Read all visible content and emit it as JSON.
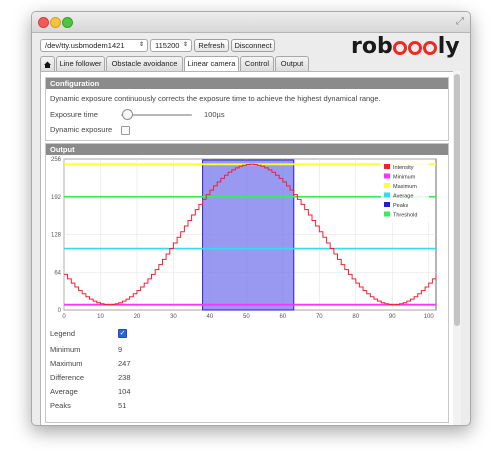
{
  "toolbar": {
    "port": "/dev/tty.usbmodem1421",
    "baud": "115200",
    "refresh_label": "Refresh",
    "disconnect_label": "Disconnect",
    "logo_text_pre": "rob",
    "logo_text_post": "ly"
  },
  "tabs": [
    {
      "label": "Line follower"
    },
    {
      "label": "Obstacle avoidance"
    },
    {
      "label": "Linear camera",
      "active": true
    },
    {
      "label": "Control"
    },
    {
      "label": "Output"
    }
  ],
  "configuration": {
    "title": "Configuration",
    "description": "Dynamic exposure continuously corrects the exposure time to achieve the highest dynamical range.",
    "exposure_label": "Exposure time",
    "exposure_value": "100µs",
    "dynamic_label": "Dynamic exposure"
  },
  "output": {
    "title": "Output",
    "legend_label": "Legend",
    "stats": [
      {
        "label": "Minimum",
        "value": "9"
      },
      {
        "label": "Maximum",
        "value": "247"
      },
      {
        "label": "Difference",
        "value": "238"
      },
      {
        "label": "Average",
        "value": "104"
      },
      {
        "label": "Peaks",
        "value": "51"
      }
    ]
  },
  "chart_data": {
    "type": "line",
    "xlim": [
      0,
      102
    ],
    "ylim": [
      0,
      256
    ],
    "x_ticks": [
      0,
      10,
      20,
      30,
      40,
      50,
      60,
      70,
      80,
      90,
      100
    ],
    "y_ticks": [
      0,
      64,
      128,
      192,
      256
    ],
    "grid": true,
    "legend_placement": "top-right",
    "series": [
      {
        "name": "Intensity",
        "color": "#ee2233",
        "kind": "step"
      },
      {
        "name": "Minimum",
        "color": "#ff33ff",
        "value": 9
      },
      {
        "name": "Maximum",
        "color": "#ffff33",
        "value": 247
      },
      {
        "name": "Average",
        "color": "#33ddee",
        "value": 104
      },
      {
        "name": "Peaks",
        "color": "#2222cc",
        "x_range": [
          38,
          63
        ]
      },
      {
        "name": "Threshold",
        "color": "#33ee55",
        "value": 192
      }
    ],
    "intensity_min_at": [
      12,
      91
    ],
    "intensity_max_at": 51
  }
}
